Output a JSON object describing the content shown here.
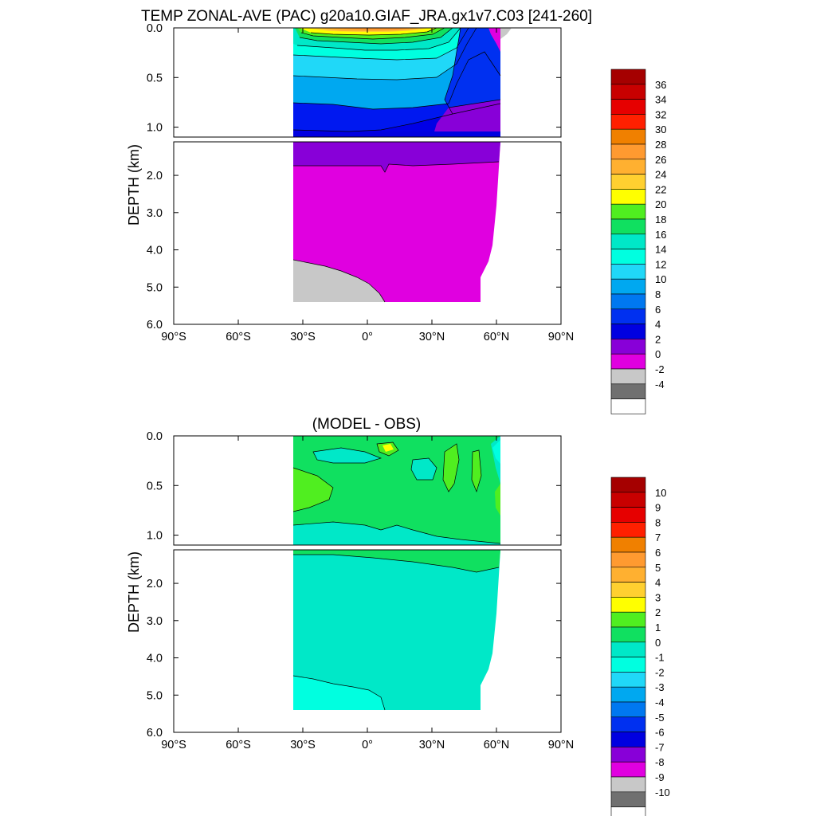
{
  "chart_data": [
    {
      "type": "contour",
      "title": "TEMP ZONAL-AVE (PAC) g20a10.GIAF_JRA.gx1v7.C03 [241-260]",
      "ylabel": "DEPTH (km)",
      "xlabel": "",
      "x_ticks": [
        "90°S",
        "60°S",
        "30°S",
        "0°",
        "30°N",
        "60°N",
        "90°N"
      ],
      "xlim": [
        -90,
        90
      ],
      "y_ticks_upper": [
        "0.0",
        "0.5",
        "1.0"
      ],
      "y_ticks_lower": [
        "2.0",
        "3.0",
        "4.0",
        "5.0",
        "6.0"
      ],
      "ylim": [
        0,
        6
      ],
      "y_break_km": 1.1,
      "colorbar": {
        "labels": [
          "36",
          "34",
          "32",
          "30",
          "28",
          "26",
          "24",
          "22",
          "20",
          "18",
          "16",
          "14",
          "12",
          "10",
          "8",
          "6",
          "4",
          "2",
          "0",
          "-2",
          "-4"
        ],
        "colors": [
          "#a50000",
          "#c80000",
          "#e60000",
          "#ff2000",
          "#f08000",
          "#ff9a30",
          "#ffb030",
          "#ffd030",
          "#ffff00",
          "#50ee20",
          "#10e060",
          "#00e8c8",
          "#00ffe0",
          "#20d8f8",
          "#00a8f0",
          "#0078f0",
          "#0030f0",
          "#0000e0",
          "#8800d8",
          "#e000e0",
          "#c8c8c8",
          "#707070",
          "#ffffff"
        ]
      }
    },
    {
      "type": "contour",
      "title": "(MODEL - OBS)",
      "ylabel": "DEPTH (km)",
      "xlabel": "",
      "x_ticks": [
        "90°S",
        "60°S",
        "30°S",
        "0°",
        "30°N",
        "60°N",
        "90°N"
      ],
      "xlim": [
        -90,
        90
      ],
      "y_ticks_upper": [
        "0.0",
        "0.5",
        "1.0"
      ],
      "y_ticks_lower": [
        "2.0",
        "3.0",
        "4.0",
        "5.0",
        "6.0"
      ],
      "ylim": [
        0,
        6
      ],
      "y_break_km": 1.1,
      "colorbar": {
        "labels": [
          "10",
          "9",
          "8",
          "7",
          "6",
          "5",
          "4",
          "3",
          "2",
          "1",
          "0",
          "-1",
          "-2",
          "-3",
          "-4",
          "-5",
          "-6",
          "-7",
          "-8",
          "-9",
          "-10"
        ],
        "colors": [
          "#a50000",
          "#c80000",
          "#e60000",
          "#ff2000",
          "#f08000",
          "#ff9a30",
          "#ffb030",
          "#ffd030",
          "#ffff00",
          "#50ee20",
          "#10e060",
          "#00e8c8",
          "#00ffe0",
          "#20d8f8",
          "#00a8f0",
          "#0078f0",
          "#0030f0",
          "#0000e0",
          "#8800d8",
          "#e000e0",
          "#c8c8c8",
          "#707070",
          "#ffffff"
        ]
      }
    }
  ]
}
